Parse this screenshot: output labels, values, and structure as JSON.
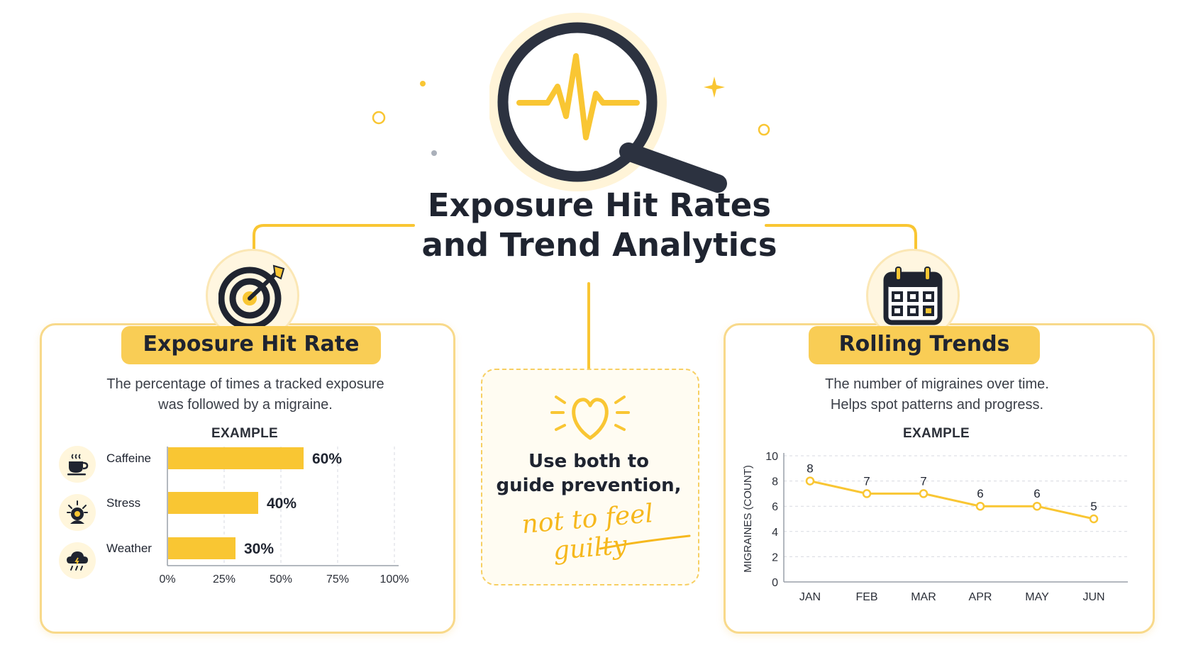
{
  "title": {
    "line1": "Exposure Hit Rates",
    "line2": "and Trend Analytics"
  },
  "colors": {
    "accent": "#f9c633",
    "accent_light": "#fff6dc",
    "dark": "#1f2430",
    "border": "#f8d98a"
  },
  "icons": {
    "header": "magnifier-pulse-icon",
    "left_panel": "target-arrow-icon",
    "right_panel": "calendar-icon",
    "center": "heart-icon"
  },
  "left_panel": {
    "heading": "Exposure Hit Rate",
    "desc_line1": "The percentage of times a tracked exposure",
    "desc_line2": "was followed by a migraine.",
    "example_label": "EXAMPLE"
  },
  "right_panel": {
    "heading": "Rolling Trends",
    "desc_line1": "The number of migraines over time.",
    "desc_line2": "Helps spot patterns and progress.",
    "example_label": "EXAMPLE"
  },
  "center": {
    "line1": "Use both to",
    "line2": "guide prevention,",
    "script": "not to feel guilty"
  },
  "chart_data": [
    {
      "type": "bar",
      "orientation": "horizontal",
      "categories": [
        "Caffeine",
        "Stress",
        "Weather"
      ],
      "category_icons": [
        "coffee-cup-icon",
        "stress-head-icon",
        "rain-cloud-icon"
      ],
      "values": [
        60,
        40,
        30
      ],
      "value_labels": [
        "60%",
        "40%",
        "30%"
      ],
      "xlim": [
        0,
        100
      ],
      "x_ticks": [
        "0%",
        "25%",
        "50%",
        "75%",
        "100%"
      ],
      "grid": true
    },
    {
      "type": "line",
      "x": [
        "JAN",
        "FEB",
        "MAR",
        "APR",
        "MAY",
        "JUN"
      ],
      "values": [
        8,
        7,
        7,
        6,
        6,
        5
      ],
      "ylabel": "MIGRAINES (COUNT)",
      "ylim": [
        0,
        10
      ],
      "y_ticks": [
        "0",
        "2",
        "4",
        "6",
        "8",
        "10"
      ],
      "grid": true
    }
  ]
}
